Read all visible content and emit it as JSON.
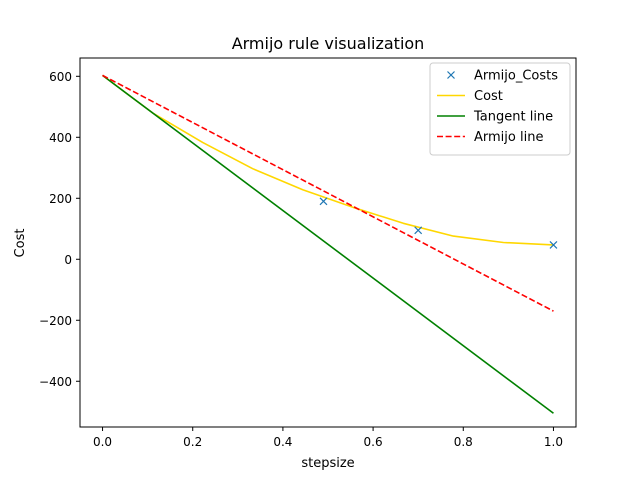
{
  "chart_data": {
    "type": "line",
    "title": "Armijo rule visualization",
    "xlabel": "stepsize",
    "ylabel": "Cost",
    "xlim": [
      -0.05,
      1.05
    ],
    "ylim": [
      -550,
      660
    ],
    "xticks": [
      0.0,
      0.2,
      0.4,
      0.6,
      0.8,
      1.0
    ],
    "xtick_labels": [
      "0.0",
      "0.2",
      "0.4",
      "0.6",
      "0.8",
      "1.0"
    ],
    "yticks": [
      -400,
      -200,
      0,
      200,
      400,
      600
    ],
    "ytick_labels": [
      "−400",
      "−200",
      "0",
      "200",
      "400",
      "600"
    ],
    "grid": false,
    "legend_position": "top-right",
    "series": [
      {
        "name": "Armijo_Costs",
        "style": "markers",
        "marker": "x",
        "color": "#1f77b4",
        "x": [
          0.49,
          0.7,
          1.0
        ],
        "y": [
          190,
          95,
          47
        ]
      },
      {
        "name": "Cost",
        "style": "solid",
        "color": "#ffd700",
        "x": [
          0.0,
          0.111,
          0.222,
          0.333,
          0.444,
          0.556,
          0.667,
          0.778,
          0.889,
          1.0
        ],
        "y": [
          603,
          480,
          383,
          297,
          228,
          170,
          118,
          76,
          55,
          47
        ]
      },
      {
        "name": "Tangent line",
        "style": "solid",
        "color": "#008000",
        "x": [
          0.0,
          1.0
        ],
        "y": [
          603,
          -505
        ]
      },
      {
        "name": "Armijo line",
        "style": "dashed",
        "color": "#ff0000",
        "x": [
          0.0,
          1.0
        ],
        "y": [
          603,
          -170
        ]
      }
    ]
  }
}
